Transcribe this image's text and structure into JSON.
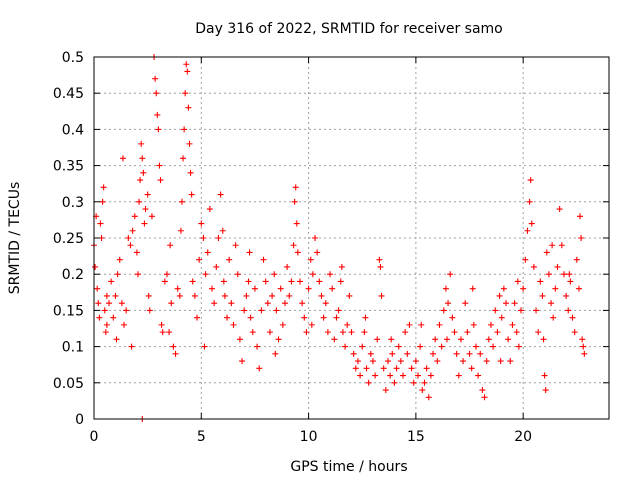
{
  "chart_data": {
    "type": "scatter",
    "title": "Day 316 of 2022, SRMTID for receiver samo",
    "xlabel": "GPS time / hours",
    "ylabel": "SRMTID / TECUs",
    "xlim": [
      0,
      24
    ],
    "ylim": [
      0,
      0.5
    ],
    "xticks": [
      0,
      5,
      10,
      15,
      20
    ],
    "xtick_labels": [
      "0",
      "5",
      "10",
      "15",
      "20"
    ],
    "yticks": [
      0,
      0.05,
      0.1,
      0.15,
      0.2,
      0.25,
      0.3,
      0.35,
      0.4,
      0.45,
      0.5
    ],
    "ytick_labels": [
      "0",
      "0.05",
      "0.1",
      "0.15",
      "0.2",
      "0.25",
      "0.3",
      "0.35",
      "0.4",
      "0.45",
      "0.5"
    ],
    "grid": true,
    "marker": "+",
    "marker_color": "#ff0000",
    "series": [
      {
        "name": "SRMTID",
        "points": [
          [
            0.0,
            0.24
          ],
          [
            0.05,
            0.21
          ],
          [
            0.1,
            0.28
          ],
          [
            0.15,
            0.18
          ],
          [
            0.2,
            0.16
          ],
          [
            0.25,
            0.14
          ],
          [
            0.3,
            0.27
          ],
          [
            0.35,
            0.25
          ],
          [
            0.4,
            0.3
          ],
          [
            0.45,
            0.32
          ],
          [
            0.5,
            0.15
          ],
          [
            0.55,
            0.12
          ],
          [
            0.6,
            0.17
          ],
          [
            0.7,
            0.16
          ],
          [
            0.8,
            0.19
          ],
          [
            0.9,
            0.14
          ],
          [
            1.0,
            0.17
          ],
          [
            1.1,
            0.2
          ],
          [
            1.2,
            0.22
          ],
          [
            1.3,
            0.16
          ],
          [
            1.35,
            0.36
          ],
          [
            1.4,
            0.13
          ],
          [
            1.5,
            0.15
          ],
          [
            1.6,
            0.25
          ],
          [
            1.7,
            0.24
          ],
          [
            1.75,
            0.1
          ],
          [
            1.8,
            0.26
          ],
          [
            1.9,
            0.28
          ],
          [
            2.0,
            0.23
          ],
          [
            2.05,
            0.2
          ],
          [
            2.1,
            0.3
          ],
          [
            2.15,
            0.33
          ],
          [
            2.2,
            0.38
          ],
          [
            2.25,
            0.36
          ],
          [
            2.3,
            0.34
          ],
          [
            2.35,
            0.27
          ],
          [
            2.4,
            0.29
          ],
          [
            2.5,
            0.31
          ],
          [
            2.55,
            0.17
          ],
          [
            2.6,
            0.15
          ],
          [
            2.7,
            0.28
          ],
          [
            2.8,
            0.5
          ],
          [
            2.85,
            0.47
          ],
          [
            2.9,
            0.45
          ],
          [
            2.95,
            0.42
          ],
          [
            3.0,
            0.4
          ],
          [
            3.05,
            0.35
          ],
          [
            3.1,
            0.33
          ],
          [
            3.15,
            0.13
          ],
          [
            3.2,
            0.12
          ],
          [
            3.3,
            0.19
          ],
          [
            3.4,
            0.2
          ],
          [
            3.5,
            0.12
          ],
          [
            3.6,
            0.16
          ],
          [
            3.7,
            0.1
          ],
          [
            3.8,
            0.09
          ],
          [
            3.9,
            0.18
          ],
          [
            4.0,
            0.17
          ],
          [
            4.05,
            0.26
          ],
          [
            4.1,
            0.3
          ],
          [
            4.15,
            0.36
          ],
          [
            4.2,
            0.4
          ],
          [
            4.25,
            0.45
          ],
          [
            4.3,
            0.49
          ],
          [
            4.35,
            0.48
          ],
          [
            4.4,
            0.43
          ],
          [
            4.45,
            0.38
          ],
          [
            4.5,
            0.34
          ],
          [
            4.55,
            0.31
          ],
          [
            4.6,
            0.19
          ],
          [
            4.7,
            0.17
          ],
          [
            4.8,
            0.14
          ],
          [
            4.9,
            0.22
          ],
          [
            5.0,
            0.27
          ],
          [
            5.1,
            0.25
          ],
          [
            5.2,
            0.2
          ],
          [
            5.3,
            0.23
          ],
          [
            5.4,
            0.29
          ],
          [
            5.5,
            0.18
          ],
          [
            5.6,
            0.16
          ],
          [
            5.7,
            0.21
          ],
          [
            5.8,
            0.25
          ],
          [
            5.9,
            0.31
          ],
          [
            6.0,
            0.26
          ],
          [
            6.1,
            0.17
          ],
          [
            6.2,
            0.14
          ],
          [
            6.3,
            0.22
          ],
          [
            6.4,
            0.16
          ],
          [
            6.5,
            0.13
          ],
          [
            6.6,
            0.24
          ],
          [
            6.7,
            0.2
          ],
          [
            6.8,
            0.11
          ],
          [
            6.9,
            0.08
          ],
          [
            7.0,
            0.15
          ],
          [
            7.1,
            0.17
          ],
          [
            7.2,
            0.19
          ],
          [
            7.3,
            0.14
          ],
          [
            7.4,
            0.12
          ],
          [
            7.5,
            0.18
          ],
          [
            7.6,
            0.1
          ],
          [
            7.7,
            0.07
          ],
          [
            7.8,
            0.15
          ],
          [
            7.9,
            0.22
          ],
          [
            8.0,
            0.19
          ],
          [
            8.1,
            0.16
          ],
          [
            8.2,
            0.12
          ],
          [
            8.3,
            0.17
          ],
          [
            8.4,
            0.2
          ],
          [
            8.5,
            0.15
          ],
          [
            8.6,
            0.11
          ],
          [
            8.7,
            0.18
          ],
          [
            8.8,
            0.13
          ],
          [
            8.9,
            0.16
          ],
          [
            9.0,
            0.21
          ],
          [
            9.1,
            0.17
          ],
          [
            9.2,
            0.19
          ],
          [
            9.3,
            0.24
          ],
          [
            9.35,
            0.3
          ],
          [
            9.4,
            0.32
          ],
          [
            9.45,
            0.27
          ],
          [
            9.5,
            0.23
          ],
          [
            9.6,
            0.19
          ],
          [
            9.7,
            0.16
          ],
          [
            9.8,
            0.14
          ],
          [
            9.9,
            0.12
          ],
          [
            10.0,
            0.18
          ],
          [
            10.1,
            0.22
          ],
          [
            10.2,
            0.2
          ],
          [
            10.3,
            0.25
          ],
          [
            10.4,
            0.23
          ],
          [
            10.5,
            0.19
          ],
          [
            10.6,
            0.17
          ],
          [
            10.7,
            0.14
          ],
          [
            10.8,
            0.16
          ],
          [
            10.9,
            0.12
          ],
          [
            11.0,
            0.2
          ],
          [
            11.1,
            0.18
          ],
          [
            11.2,
            0.11
          ],
          [
            11.3,
            0.14
          ],
          [
            11.4,
            0.15
          ],
          [
            11.5,
            0.19
          ],
          [
            11.6,
            0.12
          ],
          [
            11.7,
            0.1
          ],
          [
            11.8,
            0.13
          ],
          [
            11.9,
            0.17
          ],
          [
            12.0,
            0.12
          ],
          [
            12.1,
            0.09
          ],
          [
            12.2,
            0.07
          ],
          [
            12.3,
            0.08
          ],
          [
            12.4,
            0.06
          ],
          [
            12.5,
            0.1
          ],
          [
            12.6,
            0.12
          ],
          [
            12.7,
            0.07
          ],
          [
            12.8,
            0.05
          ],
          [
            12.9,
            0.09
          ],
          [
            13.0,
            0.08
          ],
          [
            13.1,
            0.06
          ],
          [
            13.2,
            0.11
          ],
          [
            13.3,
            0.22
          ],
          [
            13.35,
            0.21
          ],
          [
            13.4,
            0.17
          ],
          [
            13.5,
            0.07
          ],
          [
            13.6,
            0.04
          ],
          [
            13.7,
            0.08
          ],
          [
            13.8,
            0.06
          ],
          [
            13.9,
            0.09
          ],
          [
            14.0,
            0.05
          ],
          [
            14.1,
            0.07
          ],
          [
            14.2,
            0.1
          ],
          [
            14.3,
            0.08
          ],
          [
            14.4,
            0.06
          ],
          [
            14.5,
            0.12
          ],
          [
            14.6,
            0.09
          ],
          [
            14.7,
            0.13
          ],
          [
            14.8,
            0.07
          ],
          [
            14.9,
            0.05
          ],
          [
            15.0,
            0.08
          ],
          [
            15.1,
            0.06
          ],
          [
            15.2,
            0.1
          ],
          [
            15.3,
            0.04
          ],
          [
            15.4,
            0.05
          ],
          [
            15.5,
            0.07
          ],
          [
            15.6,
            0.03
          ],
          [
            15.7,
            0.06
          ],
          [
            15.8,
            0.09
          ],
          [
            15.9,
            0.11
          ],
          [
            16.0,
            0.08
          ],
          [
            16.1,
            0.13
          ],
          [
            16.2,
            0.1
          ],
          [
            16.3,
            0.15
          ],
          [
            16.4,
            0.18
          ],
          [
            16.5,
            0.16
          ],
          [
            16.6,
            0.2
          ],
          [
            16.7,
            0.14
          ],
          [
            16.8,
            0.12
          ],
          [
            16.9,
            0.09
          ],
          [
            17.0,
            0.06
          ],
          [
            17.1,
            0.11
          ],
          [
            17.2,
            0.08
          ],
          [
            17.3,
            0.16
          ],
          [
            17.4,
            0.12
          ],
          [
            17.5,
            0.09
          ],
          [
            17.6,
            0.07
          ],
          [
            17.7,
            0.13
          ],
          [
            17.8,
            0.1
          ],
          [
            17.9,
            0.06
          ],
          [
            18.0,
            0.09
          ],
          [
            18.1,
            0.04
          ],
          [
            18.2,
            0.03
          ],
          [
            18.3,
            0.08
          ],
          [
            18.4,
            0.11
          ],
          [
            18.5,
            0.13
          ],
          [
            18.6,
            0.1
          ],
          [
            18.7,
            0.15
          ],
          [
            18.8,
            0.12
          ],
          [
            18.9,
            0.17
          ],
          [
            19.0,
            0.14
          ],
          [
            19.1,
            0.18
          ],
          [
            19.2,
            0.16
          ],
          [
            19.3,
            0.11
          ],
          [
            19.4,
            0.08
          ],
          [
            19.5,
            0.13
          ],
          [
            19.6,
            0.16
          ],
          [
            19.7,
            0.12
          ],
          [
            19.8,
            0.1
          ],
          [
            19.9,
            0.15
          ],
          [
            20.0,
            0.18
          ],
          [
            20.1,
            0.22
          ],
          [
            20.2,
            0.26
          ],
          [
            20.3,
            0.3
          ],
          [
            20.35,
            0.33
          ],
          [
            20.4,
            0.27
          ],
          [
            20.5,
            0.21
          ],
          [
            20.6,
            0.15
          ],
          [
            20.7,
            0.12
          ],
          [
            20.8,
            0.19
          ],
          [
            20.9,
            0.17
          ],
          [
            21.0,
            0.06
          ],
          [
            21.05,
            0.04
          ],
          [
            21.1,
            0.23
          ],
          [
            21.2,
            0.2
          ],
          [
            21.3,
            0.16
          ],
          [
            21.4,
            0.14
          ],
          [
            21.5,
            0.18
          ],
          [
            21.6,
            0.21
          ],
          [
            21.7,
            0.29
          ],
          [
            21.8,
            0.24
          ],
          [
            21.9,
            0.2
          ],
          [
            22.0,
            0.17
          ],
          [
            22.1,
            0.15
          ],
          [
            22.2,
            0.19
          ],
          [
            22.3,
            0.14
          ],
          [
            22.4,
            0.12
          ],
          [
            22.5,
            0.22
          ],
          [
            22.6,
            0.18
          ],
          [
            22.65,
            0.28
          ],
          [
            22.7,
            0.25
          ],
          [
            22.75,
            0.11
          ],
          [
            22.8,
            0.1
          ],
          [
            22.85,
            0.09
          ],
          [
            2.25,
            0.0
          ],
          [
            0.6,
            0.13
          ],
          [
            1.05,
            0.11
          ],
          [
            3.55,
            0.24
          ],
          [
            5.15,
            0.1
          ],
          [
            6.05,
            0.19
          ],
          [
            7.25,
            0.23
          ],
          [
            8.45,
            0.09
          ],
          [
            10.15,
            0.13
          ],
          [
            11.55,
            0.21
          ],
          [
            12.65,
            0.14
          ],
          [
            13.85,
            0.11
          ],
          [
            15.25,
            0.13
          ],
          [
            16.45,
            0.11
          ],
          [
            17.65,
            0.18
          ],
          [
            18.95,
            0.08
          ],
          [
            19.75,
            0.19
          ],
          [
            21.35,
            0.24
          ],
          [
            22.15,
            0.2
          ],
          [
            20.95,
            0.11
          ]
        ]
      }
    ]
  }
}
